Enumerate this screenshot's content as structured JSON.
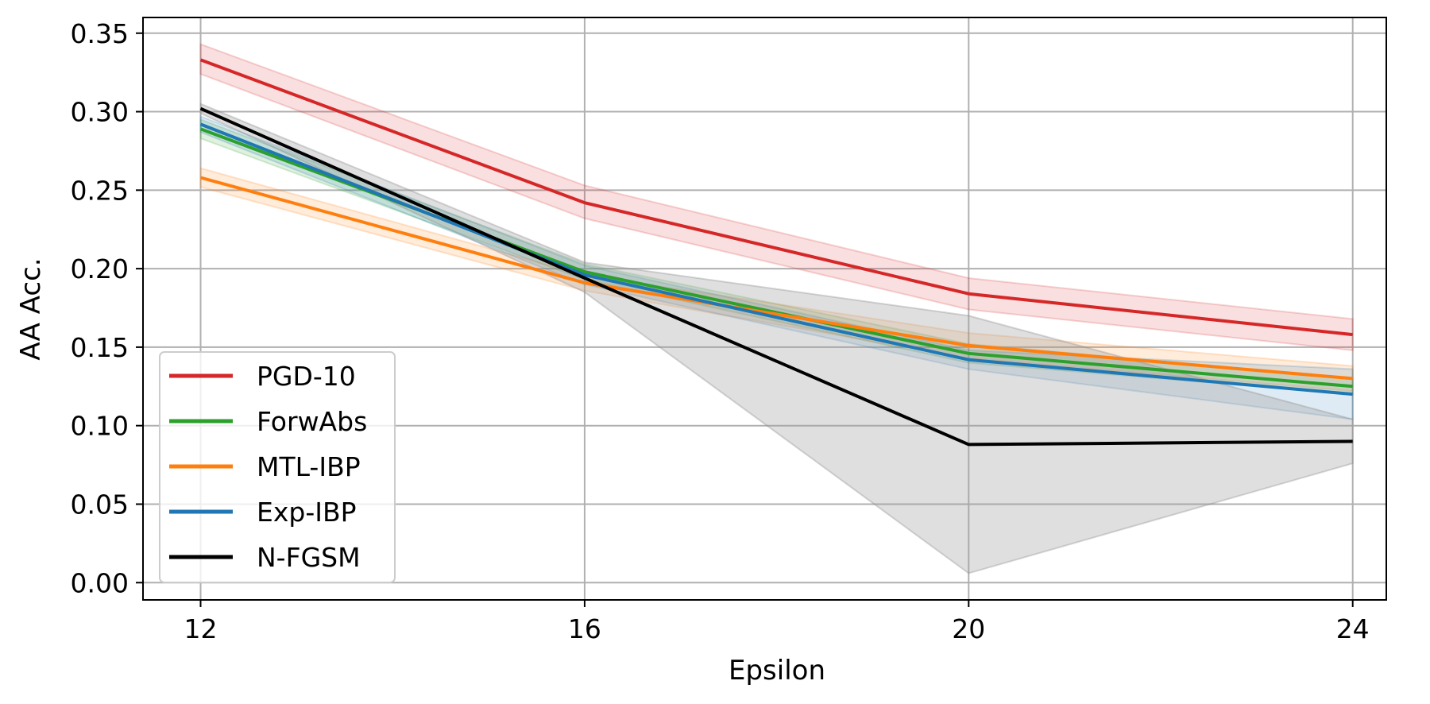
{
  "chart_data": {
    "type": "line",
    "xlabel": "Epsilon",
    "ylabel": "AA Acc.",
    "x": [
      12,
      16,
      20,
      24
    ],
    "x_ticks": [
      "12",
      "16",
      "20",
      "24"
    ],
    "xlim": [
      11.4,
      24.35
    ],
    "ylim": [
      -0.011,
      0.36
    ],
    "y_ticks": [
      "0.00",
      "0.05",
      "0.10",
      "0.15",
      "0.20",
      "0.25",
      "0.30",
      "0.35"
    ],
    "grid": true,
    "legend_position": "lower-left",
    "series": [
      {
        "name": "PGD-10",
        "color": "#d62728",
        "values": [
          0.333,
          0.242,
          0.184,
          0.158
        ],
        "lower": [
          0.324,
          0.232,
          0.174,
          0.148
        ],
        "upper": [
          0.343,
          0.253,
          0.194,
          0.168
        ]
      },
      {
        "name": "ForwAbs",
        "color": "#2ca02c",
        "values": [
          0.289,
          0.198,
          0.146,
          0.125
        ],
        "lower": [
          0.283,
          0.193,
          0.14,
          0.12
        ],
        "upper": [
          0.295,
          0.203,
          0.152,
          0.13
        ]
      },
      {
        "name": "MTL-IBP",
        "color": "#ff7f0e",
        "values": [
          0.258,
          0.191,
          0.151,
          0.13
        ],
        "lower": [
          0.252,
          0.186,
          0.143,
          0.122
        ],
        "upper": [
          0.264,
          0.196,
          0.159,
          0.138
        ]
      },
      {
        "name": "Exp-IBP",
        "color": "#1f77b4",
        "values": [
          0.292,
          0.196,
          0.142,
          0.12
        ],
        "lower": [
          0.287,
          0.19,
          0.136,
          0.104
        ],
        "upper": [
          0.297,
          0.202,
          0.148,
          0.136
        ]
      },
      {
        "name": "N-FGSM",
        "color": "#000000",
        "values": [
          0.302,
          0.194,
          0.088,
          0.09
        ],
        "lower": [
          0.299,
          0.185,
          0.006,
          0.076
        ],
        "upper": [
          0.305,
          0.204,
          0.17,
          0.104
        ]
      }
    ]
  }
}
